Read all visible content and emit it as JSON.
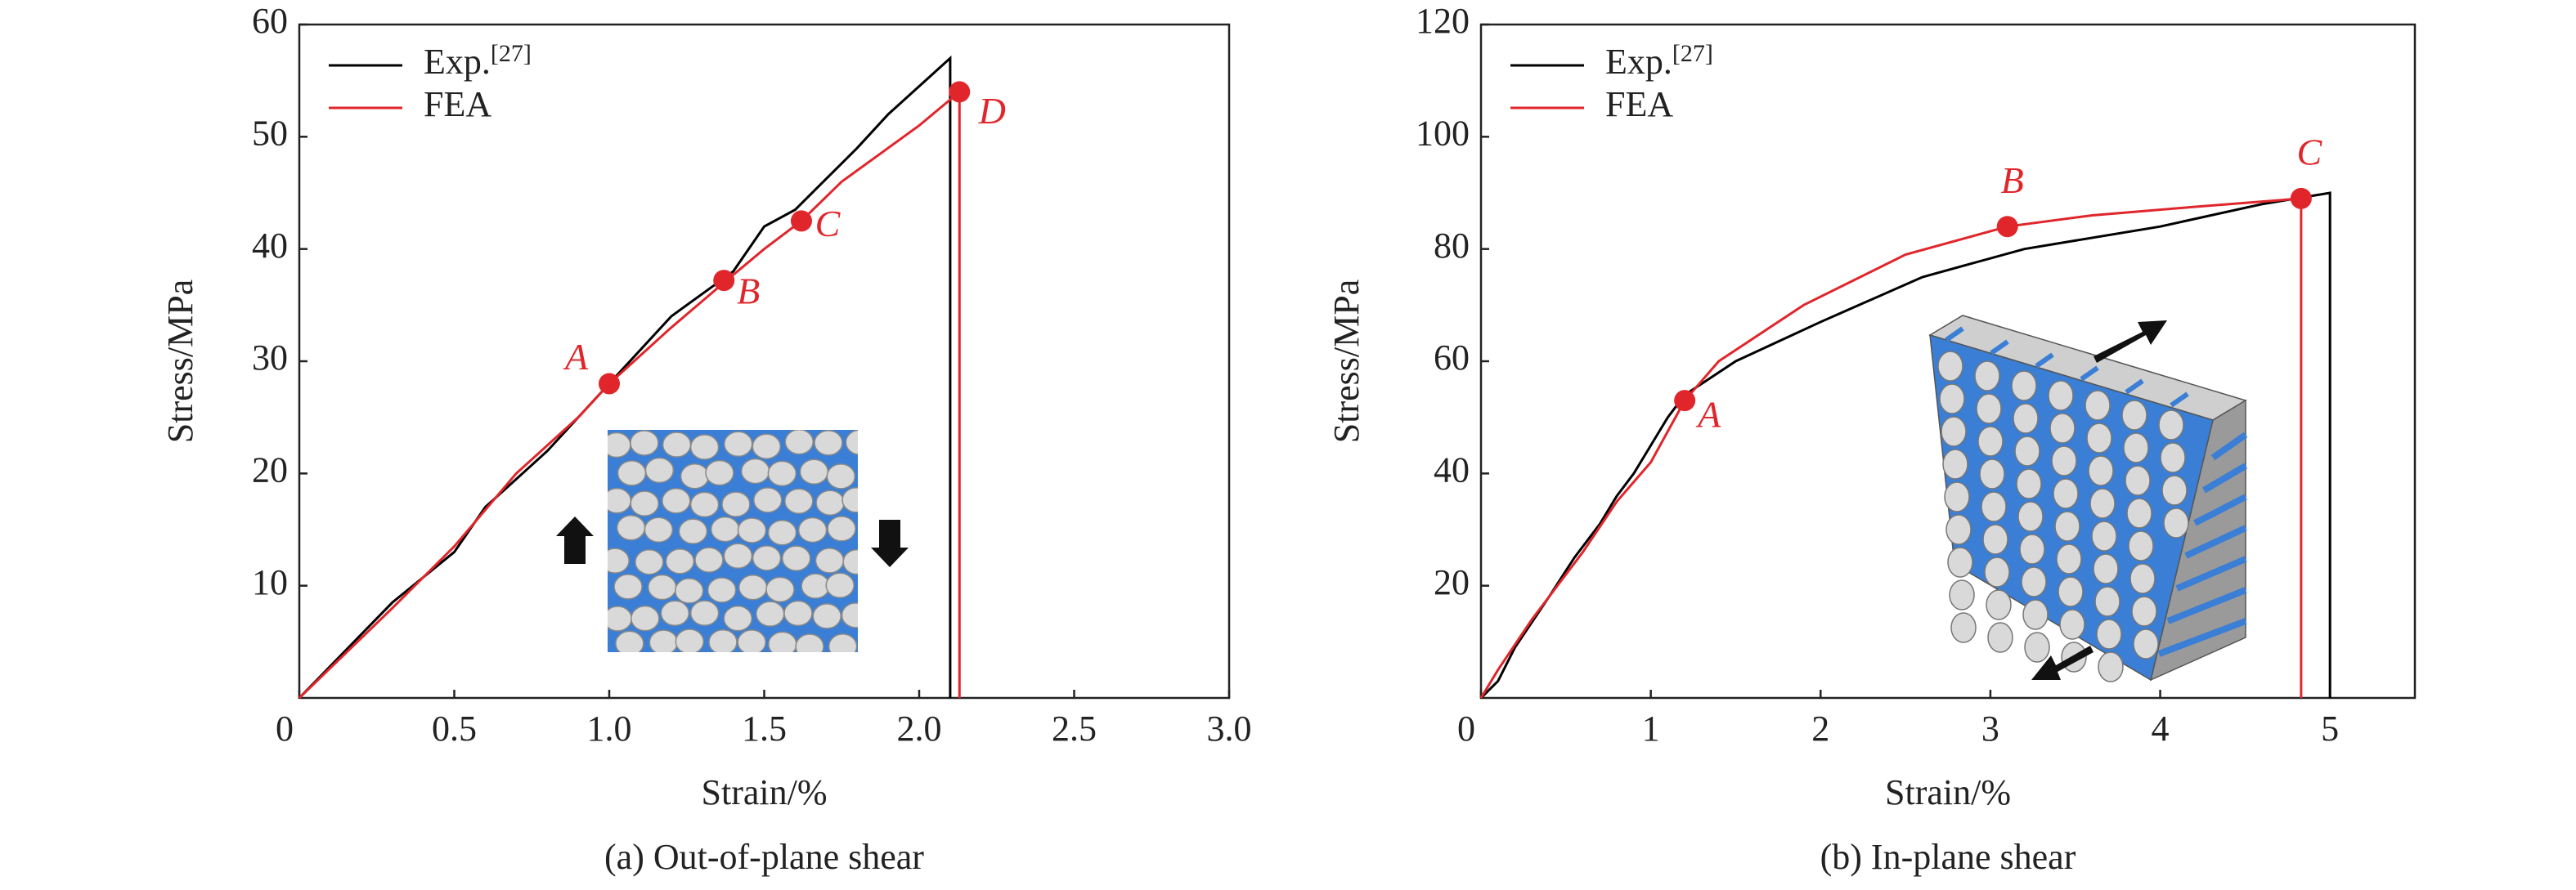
{
  "chart_data": [
    {
      "type": "line",
      "subtitle": "(a) Out-of-plane shear",
      "xlabel": "Strain/%",
      "ylabel": "Stress/MPa",
      "xlim": [
        0,
        3
      ],
      "ylim": [
        0,
        60
      ],
      "xticks": [
        0,
        0.5,
        {
          "value": 1,
          "label": "1.0"
        },
        1.5,
        {
          "value": 2,
          "label": "2.0"
        },
        2.5,
        {
          "value": 3,
          "label": "3.0"
        }
      ],
      "yticks": [
        10,
        20,
        30,
        40,
        50,
        60
      ],
      "series": [
        {
          "name": "Exp.",
          "citation": "[27]",
          "color": "#000000",
          "x": [
            0,
            0.3,
            0.5,
            0.6,
            0.8,
            1.0,
            1.2,
            1.4,
            1.5,
            1.6,
            1.8,
            1.9,
            2.1,
            2.1
          ],
          "values": [
            0,
            8.5,
            13,
            17,
            22,
            28,
            34,
            38,
            42,
            43.5,
            49,
            52,
            57,
            0
          ]
        },
        {
          "name": "FEA",
          "color": "#e0262b",
          "x": [
            0,
            0.3,
            0.5,
            0.7,
            0.9,
            1.0,
            1.2,
            1.37,
            1.5,
            1.62,
            1.75,
            2.0,
            2.13,
            2.13
          ],
          "values": [
            0,
            8,
            13.5,
            20,
            25,
            28,
            33,
            37,
            40,
            42.5,
            46,
            51,
            54,
            0
          ]
        }
      ],
      "points": {
        "labels": [
          "A",
          "B",
          "C",
          "D"
        ],
        "x": [
          1.0,
          1.37,
          1.62,
          2.13
        ],
        "y": [
          28,
          37.2,
          42.5,
          54
        ],
        "color": "#e0262b"
      }
    },
    {
      "type": "line",
      "subtitle": "(b) In-plane shear",
      "xlabel": "Strain/%",
      "ylabel": "Stress/MPa",
      "xlim": [
        0,
        5.5
      ],
      "ylim": [
        0,
        120
      ],
      "xticks": [
        0,
        1,
        2,
        3,
        4,
        5
      ],
      "yticks": [
        20,
        40,
        60,
        80,
        100,
        120
      ],
      "series": [
        {
          "name": "Exp.",
          "citation": "[27]",
          "color": "#000000",
          "x": [
            0,
            0.1,
            0.2,
            0.4,
            0.55,
            0.7,
            0.8,
            0.9,
            1.0,
            1.1,
            1.2,
            1.5,
            2.0,
            2.6,
            3.2,
            4.0,
            4.6,
            4.8,
            5.0,
            5.0
          ],
          "values": [
            0,
            3,
            9,
            18,
            25,
            31,
            36,
            40,
            45,
            50,
            54,
            60,
            67,
            75,
            80,
            84,
            88,
            89,
            90,
            0
          ]
        },
        {
          "name": "FEA",
          "color": "#e0262b",
          "x": [
            0,
            0.1,
            0.3,
            0.6,
            0.8,
            1.0,
            1.2,
            1.4,
            1.9,
            2.5,
            3.1,
            3.6,
            4.2,
            4.83,
            4.83
          ],
          "values": [
            0,
            5,
            14,
            26,
            35,
            42,
            53,
            60,
            70,
            79,
            84,
            86,
            87.5,
            89,
            0
          ]
        }
      ],
      "points": {
        "labels": [
          "A",
          "B",
          "C"
        ],
        "x": [
          1.2,
          3.1,
          4.83
        ],
        "y": [
          53,
          84,
          89
        ],
        "color": "#e0262b"
      }
    }
  ]
}
